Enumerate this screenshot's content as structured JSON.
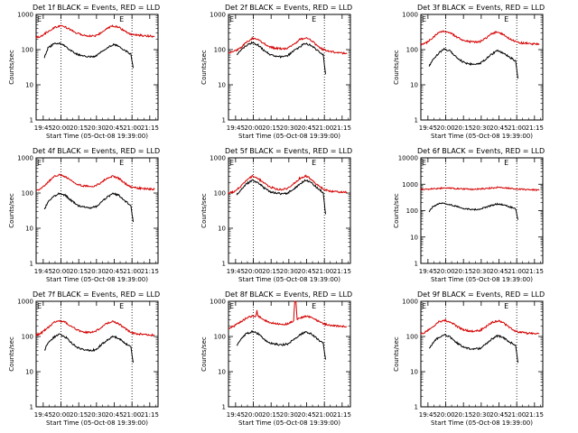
{
  "colors": {
    "events": "#000000",
    "lld": "#d40000",
    "axes": "#000000",
    "background": "#ffffff"
  },
  "x_axis": {
    "label": "Start Time (05-Oct-08 19:39:00)",
    "tick_labels": [
      "19:45",
      "20:00",
      "20:15",
      "20:30",
      "20:45",
      "21:00",
      "21:15"
    ],
    "tick_minutes": [
      6,
      21,
      36,
      51,
      66,
      81,
      96
    ],
    "range_minutes": [
      0,
      103
    ],
    "marker_lines_minutes": [
      21,
      81
    ],
    "marker_labels": [
      "E",
      "E"
    ]
  },
  "y_axis": {
    "label": "Counts/sec",
    "scale": "log"
  },
  "chart_data": [
    {
      "type": "line",
      "title": "Det 1f BLACK = Events, RED = LLD",
      "ylim": [
        1,
        1000
      ],
      "y_tick_labels": [
        "1",
        "10",
        "100",
        "1000"
      ],
      "series": [
        {
          "name": "Events",
          "x": [
            7,
            10,
            15,
            20,
            25,
            30,
            35,
            40,
            45,
            50,
            55,
            60,
            65,
            70,
            75,
            80,
            82
          ],
          "values": [
            60,
            110,
            145,
            150,
            125,
            90,
            72,
            65,
            62,
            65,
            85,
            115,
            140,
            125,
            95,
            75,
            30
          ]
        },
        {
          "name": "LLD",
          "x": [
            0,
            5,
            10,
            15,
            20,
            25,
            30,
            35,
            40,
            45,
            50,
            55,
            60,
            65,
            70,
            75,
            80,
            85,
            90,
            95,
            100
          ],
          "values": [
            220,
            250,
            330,
            420,
            480,
            440,
            350,
            290,
            260,
            245,
            250,
            300,
            400,
            480,
            430,
            330,
            280,
            260,
            250,
            245,
            240
          ]
        }
      ]
    },
    {
      "type": "line",
      "title": "Det 2f BLACK = Events, RED = LLD",
      "ylim": [
        1,
        1000
      ],
      "y_tick_labels": [
        "1",
        "10",
        "100",
        "1000"
      ],
      "series": [
        {
          "name": "Events",
          "x": [
            7,
            10,
            15,
            20,
            25,
            30,
            35,
            40,
            45,
            50,
            55,
            60,
            65,
            70,
            75,
            80,
            82
          ],
          "values": [
            70,
            90,
            130,
            160,
            135,
            95,
            72,
            65,
            62,
            68,
            90,
            120,
            150,
            130,
            95,
            70,
            20
          ]
        },
        {
          "name": "LLD",
          "x": [
            0,
            5,
            10,
            15,
            20,
            25,
            30,
            35,
            40,
            45,
            50,
            55,
            60,
            65,
            70,
            75,
            80,
            85,
            90,
            95,
            100
          ],
          "values": [
            80,
            90,
            110,
            160,
            210,
            190,
            150,
            120,
            110,
            105,
            110,
            140,
            190,
            220,
            180,
            130,
            100,
            90,
            85,
            80,
            80
          ]
        }
      ]
    },
    {
      "type": "line",
      "title": "Det 3f BLACK = Events, RED = LLD",
      "ylim": [
        1,
        1000
      ],
      "y_tick_labels": [
        "1",
        "10",
        "100",
        "1000"
      ],
      "series": [
        {
          "name": "Events",
          "x": [
            7,
            10,
            15,
            20,
            25,
            30,
            35,
            40,
            45,
            50,
            55,
            60,
            65,
            70,
            75,
            80,
            82
          ],
          "values": [
            35,
            50,
            80,
            105,
            90,
            62,
            46,
            40,
            38,
            40,
            55,
            75,
            95,
            80,
            60,
            48,
            15
          ]
        },
        {
          "name": "LLD",
          "x": [
            0,
            5,
            10,
            15,
            20,
            25,
            30,
            35,
            40,
            45,
            50,
            55,
            60,
            65,
            70,
            75,
            80,
            85,
            90,
            95,
            100
          ],
          "values": [
            140,
            160,
            220,
            300,
            340,
            300,
            230,
            190,
            170,
            165,
            170,
            210,
            290,
            320,
            270,
            200,
            170,
            155,
            150,
            145,
            145
          ]
        }
      ]
    },
    {
      "type": "line",
      "title": "Det 4f BLACK = Events, RED = LLD",
      "ylim": [
        1,
        1000
      ],
      "y_tick_labels": [
        "1",
        "10",
        "100",
        "1000"
      ],
      "series": [
        {
          "name": "Events",
          "x": [
            7,
            10,
            15,
            20,
            25,
            30,
            35,
            40,
            45,
            50,
            55,
            60,
            65,
            70,
            75,
            80,
            82
          ],
          "values": [
            35,
            55,
            80,
            100,
            85,
            60,
            45,
            40,
            38,
            40,
            55,
            75,
            100,
            85,
            60,
            45,
            15
          ]
        },
        {
          "name": "LLD",
          "x": [
            0,
            5,
            10,
            15,
            20,
            25,
            30,
            35,
            40,
            45,
            50,
            55,
            60,
            65,
            70,
            75,
            80,
            85,
            90,
            95,
            100
          ],
          "values": [
            120,
            140,
            200,
            290,
            330,
            290,
            220,
            180,
            160,
            155,
            160,
            200,
            270,
            300,
            260,
            190,
            150,
            140,
            135,
            130,
            130
          ]
        }
      ]
    },
    {
      "type": "line",
      "title": "Det 5f BLACK = Events, RED = LLD",
      "ylim": [
        1,
        1000
      ],
      "y_tick_labels": [
        "1",
        "10",
        "100",
        "1000"
      ],
      "series": [
        {
          "name": "Events",
          "x": [
            7,
            10,
            15,
            20,
            25,
            30,
            35,
            40,
            45,
            50,
            55,
            60,
            65,
            70,
            75,
            80,
            82
          ],
          "values": [
            90,
            120,
            180,
            230,
            200,
            140,
            110,
            100,
            95,
            100,
            130,
            180,
            230,
            200,
            140,
            100,
            25
          ]
        },
        {
          "name": "LLD",
          "x": [
            0,
            5,
            10,
            15,
            20,
            25,
            30,
            35,
            40,
            45,
            50,
            55,
            60,
            65,
            70,
            75,
            80,
            85,
            90,
            95,
            100
          ],
          "values": [
            100,
            110,
            150,
            230,
            300,
            260,
            190,
            150,
            130,
            125,
            135,
            180,
            260,
            310,
            250,
            170,
            130,
            115,
            110,
            105,
            105
          ]
        }
      ]
    },
    {
      "type": "line",
      "title": "Det 6f BLACK = Events, RED = LLD",
      "ylim": [
        1,
        10000
      ],
      "y_tick_labels": [
        "1",
        "10",
        "100",
        "1000",
        "10000"
      ],
      "series": [
        {
          "name": "Events",
          "x": [
            7,
            10,
            15,
            20,
            25,
            30,
            35,
            40,
            45,
            50,
            55,
            60,
            65,
            70,
            75,
            80,
            82
          ],
          "values": [
            90,
            140,
            185,
            190,
            170,
            145,
            125,
            115,
            110,
            115,
            135,
            160,
            180,
            165,
            140,
            120,
            45
          ]
        },
        {
          "name": "LLD",
          "x": [
            0,
            5,
            10,
            15,
            20,
            25,
            30,
            35,
            40,
            45,
            50,
            55,
            60,
            65,
            70,
            75,
            80,
            85,
            90,
            95,
            100
          ],
          "values": [
            650,
            660,
            680,
            700,
            720,
            710,
            690,
            670,
            660,
            655,
            660,
            690,
            730,
            760,
            740,
            700,
            670,
            650,
            630,
            610,
            600
          ]
        }
      ]
    },
    {
      "type": "line",
      "title": "Det 7f BLACK = Events, RED = LLD",
      "ylim": [
        1,
        1000
      ],
      "y_tick_labels": [
        "1",
        "10",
        "100",
        "1000"
      ],
      "series": [
        {
          "name": "Events",
          "x": [
            7,
            10,
            15,
            20,
            25,
            30,
            35,
            40,
            45,
            50,
            55,
            60,
            65,
            70,
            75,
            80,
            82
          ],
          "values": [
            40,
            65,
            95,
            115,
            95,
            65,
            48,
            42,
            40,
            42,
            58,
            80,
            100,
            88,
            65,
            50,
            18
          ]
        },
        {
          "name": "LLD",
          "x": [
            0,
            5,
            10,
            15,
            20,
            25,
            30,
            35,
            40,
            45,
            50,
            55,
            60,
            65,
            70,
            75,
            80,
            85,
            90,
            95,
            100
          ],
          "values": [
            110,
            130,
            180,
            250,
            280,
            250,
            190,
            150,
            135,
            130,
            140,
            180,
            240,
            270,
            230,
            170,
            130,
            120,
            115,
            110,
            110
          ]
        }
      ]
    },
    {
      "type": "line",
      "title": "Det 8f BLACK = Events, RED = LLD",
      "ylim": [
        1,
        1000
      ],
      "y_tick_labels": [
        "1",
        "10",
        "100",
        "1000"
      ],
      "series": [
        {
          "name": "Events",
          "x": [
            7,
            10,
            15,
            20,
            25,
            30,
            35,
            40,
            45,
            50,
            55,
            60,
            65,
            70,
            75,
            80,
            82
          ],
          "values": [
            55,
            80,
            120,
            140,
            120,
            85,
            65,
            60,
            58,
            62,
            80,
            110,
            135,
            120,
            85,
            65,
            22
          ]
        },
        {
          "name": "LLD",
          "x": [
            0,
            5,
            10,
            15,
            20,
            23,
            24,
            25,
            30,
            35,
            40,
            45,
            50,
            55,
            56,
            57,
            58,
            60,
            65,
            70,
            75,
            80,
            85,
            90,
            95,
            100
          ],
          "values": [
            170,
            200,
            260,
            330,
            380,
            360,
            560,
            380,
            300,
            250,
            230,
            220,
            230,
            270,
            1000,
            1000,
            300,
            330,
            380,
            350,
            280,
            230,
            210,
            200,
            195,
            190
          ]
        }
      ]
    },
    {
      "type": "line",
      "title": "Det 9f BLACK = Events, RED = LLD",
      "ylim": [
        1,
        1000
      ],
      "y_tick_labels": [
        "1",
        "10",
        "100",
        "1000"
      ],
      "series": [
        {
          "name": "Events",
          "x": [
            7,
            10,
            15,
            20,
            25,
            30,
            35,
            40,
            45,
            50,
            55,
            60,
            65,
            70,
            75,
            80,
            82
          ],
          "values": [
            45,
            65,
            95,
            110,
            95,
            68,
            52,
            46,
            44,
            46,
            62,
            85,
            105,
            92,
            70,
            55,
            18
          ]
        },
        {
          "name": "LLD",
          "x": [
            0,
            5,
            10,
            15,
            20,
            25,
            30,
            35,
            40,
            45,
            50,
            55,
            60,
            65,
            70,
            75,
            80,
            85,
            90,
            95,
            100
          ],
          "values": [
            120,
            140,
            190,
            260,
            290,
            260,
            200,
            160,
            145,
            140,
            150,
            190,
            250,
            280,
            240,
            180,
            140,
            130,
            125,
            120,
            120
          ]
        }
      ]
    }
  ]
}
